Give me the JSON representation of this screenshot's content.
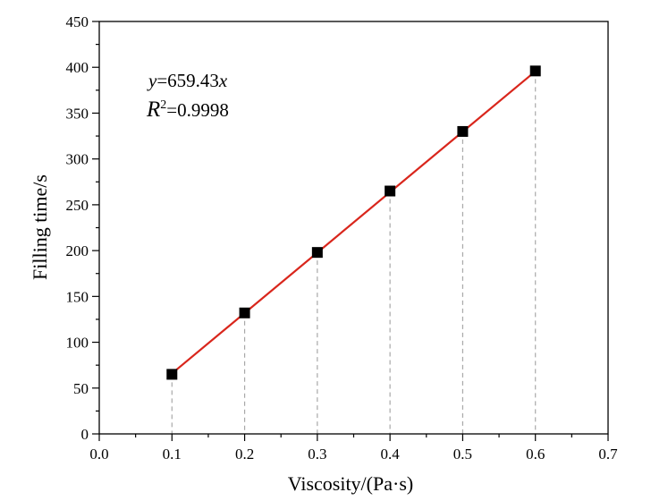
{
  "chart_data": {
    "type": "scatter",
    "title": "",
    "xlabel": "Viscosity/(Pa·s)",
    "ylabel": "Filling time/s",
    "xlim": [
      0.0,
      0.7
    ],
    "ylim": [
      0,
      450
    ],
    "xticks": [
      "0.0",
      "0.1",
      "0.2",
      "0.3",
      "0.4",
      "0.5",
      "0.6",
      "0.7"
    ],
    "yticks": [
      "0",
      "50",
      "100",
      "150",
      "200",
      "250",
      "300",
      "350",
      "400",
      "450"
    ],
    "series": [
      {
        "name": "Filling time",
        "marker": "square",
        "color": "#000000",
        "x": [
          0.1,
          0.2,
          0.3,
          0.4,
          0.5,
          0.6
        ],
        "y": [
          65,
          132,
          198,
          265,
          330,
          396
        ]
      }
    ],
    "fit": {
      "slope": 659.43,
      "color": "#d9261c",
      "x_range": [
        0.1,
        0.6
      ]
    },
    "drop_lines": true,
    "annotation": {
      "equation_var": "y",
      "equation_rest": "=659.43",
      "equation_x": "x",
      "r2_var": "R",
      "r2_sup": "2",
      "r2_rest": "=0.9998"
    }
  }
}
